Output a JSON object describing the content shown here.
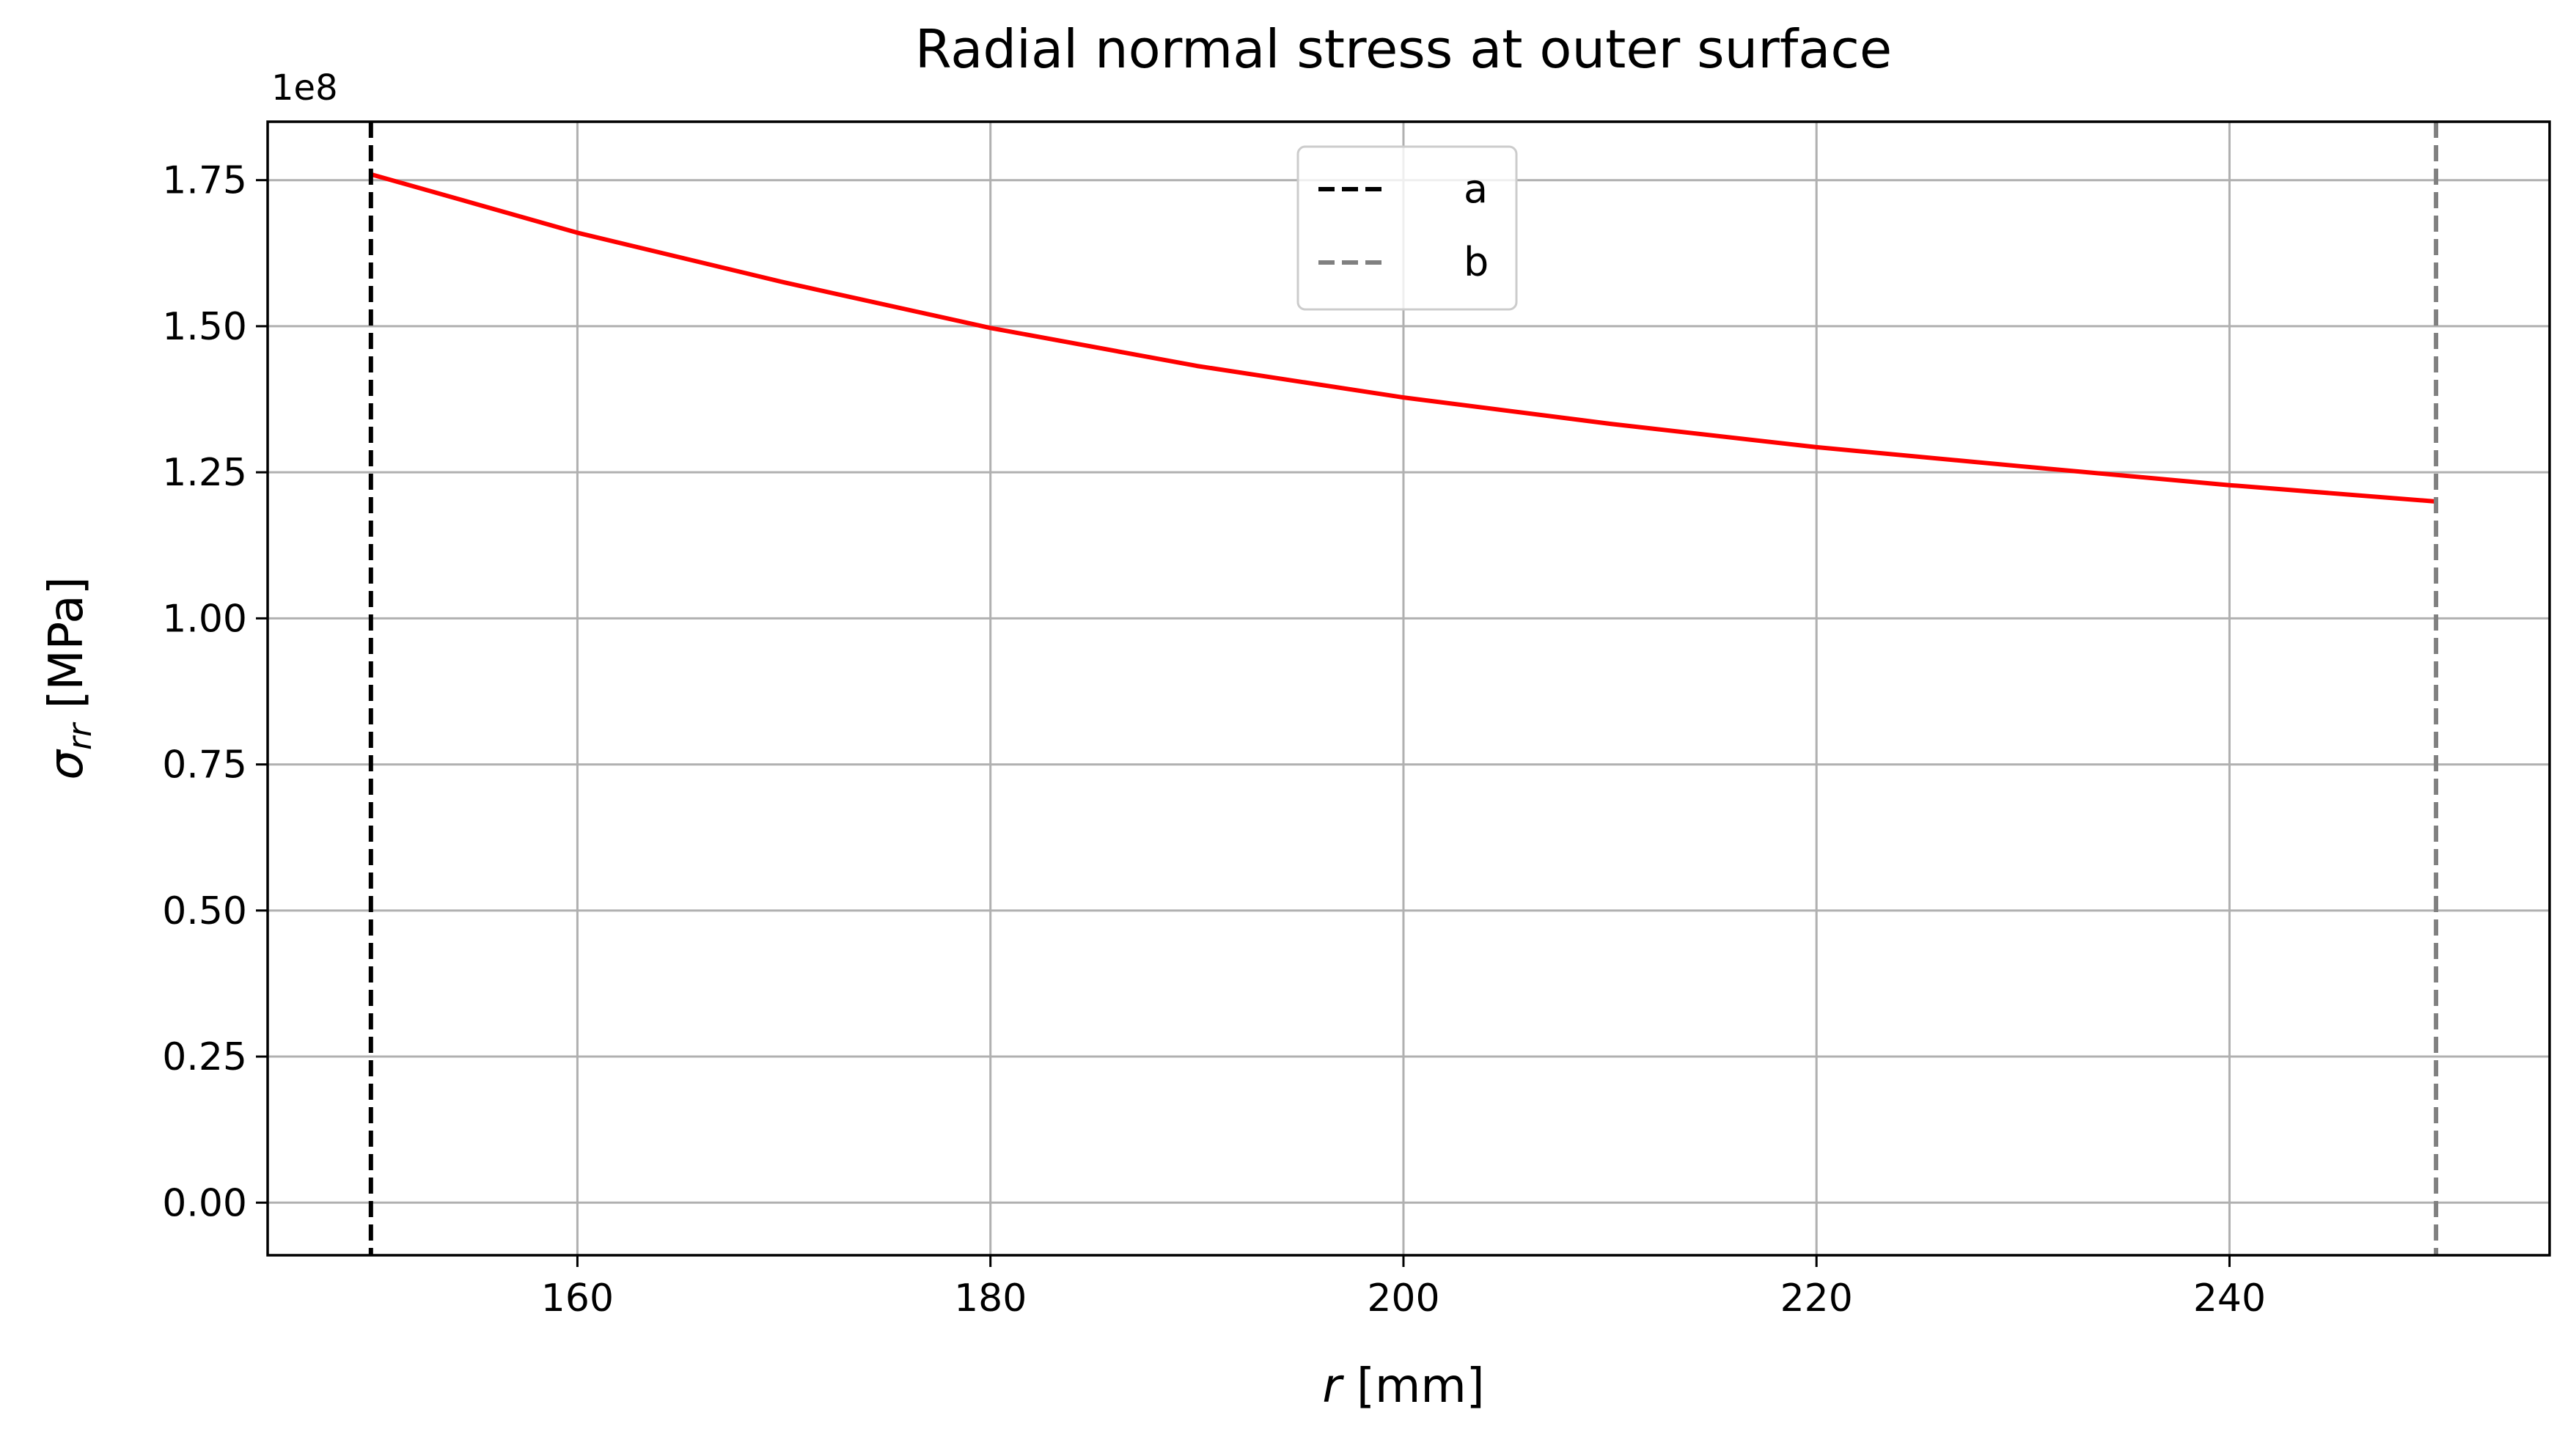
{
  "chart_data": {
    "type": "line",
    "title": "Radial normal stress at outer surface",
    "xlabel_italic": "r",
    "xlabel_unit": " [mm]",
    "ylabel_symbol": "σ",
    "ylabel_subscript": "rr",
    "ylabel_unit": " [MPa]",
    "y_offset_label": "1e8",
    "xlim": [
      145,
      255.5
    ],
    "ylim": [
      -0.09,
      1.85
    ],
    "x_ticks": [
      160,
      180,
      200,
      220,
      240
    ],
    "x_tick_labels": [
      "160",
      "180",
      "200",
      "220",
      "240"
    ],
    "y_ticks": [
      0,
      0.25,
      0.5,
      0.75,
      1.0,
      1.25,
      1.5,
      1.75
    ],
    "y_tick_labels": [
      "0.00",
      "0.25",
      "0.50",
      "0.75",
      "1.00",
      "1.25",
      "1.50",
      "1.75"
    ],
    "grid": true,
    "legend_position": "upper center",
    "series": [
      {
        "color": "#ff0000",
        "style": "solid",
        "x": [
          150,
          160,
          170,
          180,
          190,
          200,
          210,
          220,
          230,
          240,
          250
        ],
        "y": [
          1.76,
          1.66,
          1.575,
          1.497,
          1.432,
          1.378,
          1.333,
          1.293,
          1.26,
          1.228,
          1.2
        ]
      }
    ],
    "vlines": [
      {
        "name": "a",
        "x": 150,
        "color": "#000000",
        "style": "dashed"
      },
      {
        "name": "b",
        "x": 250,
        "color": "#808080",
        "style": "dashed"
      }
    ]
  }
}
